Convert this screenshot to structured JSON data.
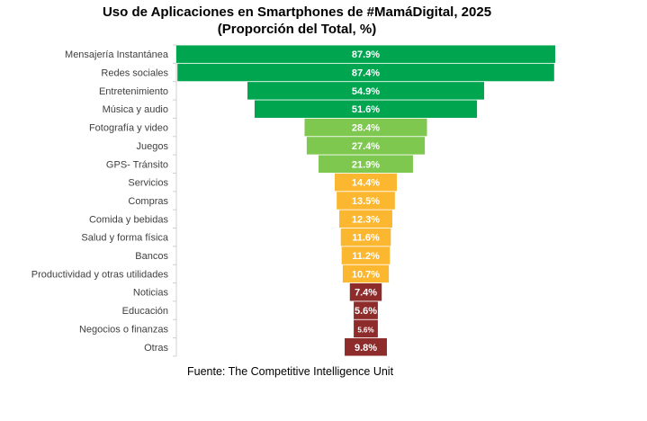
{
  "chart_data": {
    "type": "bar",
    "title": "Uso de Aplicaciones en Smartphones de #MamáDigital, 2025",
    "subtitle": "(Proporción del Total, %)",
    "source": "Fuente: The Competitive Intelligence Unit",
    "categories": [
      "Mensajería Instantánea",
      "Redes sociales",
      "Entretenimiento",
      "Música y audio",
      "Fotografía y video",
      "Juegos",
      "GPS- Tránsito",
      "Servicios",
      "Compras",
      "Comida y bebidas",
      "Salud y forma física",
      "Bancos",
      "Productividad y otras utilidades",
      "Noticias",
      "Educación",
      "Negocios o finanzas",
      "Otras"
    ],
    "values": [
      87.9,
      87.4,
      54.9,
      51.6,
      28.4,
      27.4,
      21.9,
      14.4,
      13.5,
      12.3,
      11.6,
      11.2,
      10.7,
      7.4,
      5.6,
      5.6,
      9.8
    ],
    "data_labels": [
      "87.9%",
      "87.4%",
      "54.9%",
      "51.6%",
      "28.4%",
      "27.4%",
      "21.9%",
      "14.4%",
      "13.5%",
      "12.3%",
      "11.6%",
      "11.2%",
      "10.7%",
      "7.4%",
      "5.6%",
      "5.6%",
      "9.8%"
    ],
    "colors": [
      "#00a550",
      "#00a550",
      "#00a550",
      "#00a550",
      "#7ec850",
      "#7ec850",
      "#7ec850",
      "#fbb730",
      "#fbb730",
      "#fbb730",
      "#fbb730",
      "#fbb730",
      "#fbb730",
      "#8e2b2b",
      "#8e2b2b",
      "#8e2b2b",
      "#8e2b2b"
    ],
    "orientation": "horizontal-centered (funnel)",
    "grid": false,
    "legend": "none"
  }
}
